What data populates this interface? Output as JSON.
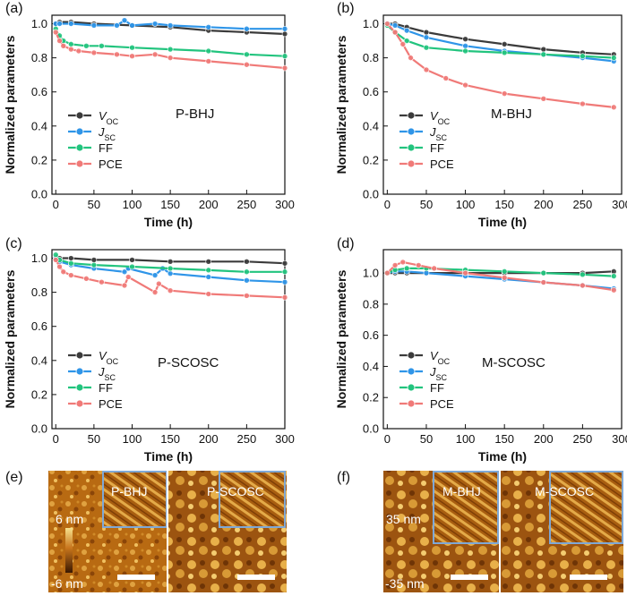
{
  "colors": {
    "voc": "#3b3b3b",
    "jsc": "#2f95e8",
    "ff": "#22c47e",
    "pce": "#f07a78"
  },
  "panel_e": {
    "label": "(e)",
    "left_title": "P-BHJ",
    "right_title": "P-SCOSC",
    "scale_max": "6 nm",
    "scale_min": "-6 nm"
  },
  "panel_f": {
    "label": "(f)",
    "left_title": "M-BHJ",
    "right_title": "M-SCOSC",
    "scale_max": "35 nm",
    "scale_min": "-35 nm"
  },
  "chart_data": [
    {
      "type": "line",
      "panel": "(a)",
      "annotation": "P-BHJ",
      "xlabel": "Time (h)",
      "ylabel": "Normalized parameters",
      "xlim": [
        -5,
        300
      ],
      "ylim": [
        0,
        1.05
      ],
      "xticks": [
        0,
        50,
        100,
        150,
        200,
        250,
        300
      ],
      "yticks": [
        0.0,
        0.2,
        0.4,
        0.6,
        0.8,
        1.0
      ],
      "legend_position": "center-left",
      "series": [
        {
          "name": "V_OC",
          "key": "voc",
          "x": [
            0,
            5,
            20,
            50,
            100,
            150,
            200,
            250,
            300
          ],
          "y": [
            1.0,
            1.01,
            1.01,
            1.0,
            0.99,
            0.98,
            0.96,
            0.95,
            0.94
          ]
        },
        {
          "name": "J_SC",
          "key": "jsc",
          "x": [
            0,
            5,
            20,
            50,
            80,
            90,
            100,
            130,
            150,
            200,
            250,
            300
          ],
          "y": [
            1.0,
            1.0,
            1.0,
            0.99,
            0.99,
            1.02,
            0.99,
            1.0,
            0.99,
            0.98,
            0.97,
            0.97
          ]
        },
        {
          "name": "FF",
          "key": "ff",
          "x": [
            0,
            5,
            10,
            20,
            40,
            60,
            100,
            150,
            200,
            250,
            300
          ],
          "y": [
            0.97,
            0.93,
            0.9,
            0.88,
            0.87,
            0.87,
            0.86,
            0.85,
            0.84,
            0.82,
            0.81
          ]
        },
        {
          "name": "PCE",
          "key": "pce",
          "x": [
            0,
            5,
            10,
            20,
            30,
            50,
            80,
            100,
            130,
            150,
            200,
            250,
            300
          ],
          "y": [
            0.95,
            0.9,
            0.87,
            0.85,
            0.84,
            0.83,
            0.82,
            0.81,
            0.82,
            0.8,
            0.78,
            0.76,
            0.74
          ]
        }
      ]
    },
    {
      "type": "line",
      "panel": "(b)",
      "annotation": "M-BHJ",
      "xlabel": "Time (h)",
      "ylabel": "Normalized parameters",
      "xlim": [
        -5,
        300
      ],
      "ylim": [
        0,
        1.05
      ],
      "xticks": [
        0,
        50,
        100,
        150,
        200,
        250,
        300
      ],
      "yticks": [
        0.0,
        0.2,
        0.4,
        0.6,
        0.8,
        1.0
      ],
      "legend_position": "center-left",
      "series": [
        {
          "name": "V_OC",
          "key": "voc",
          "x": [
            0,
            10,
            25,
            50,
            100,
            150,
            200,
            250,
            290
          ],
          "y": [
            1.0,
            1.0,
            0.98,
            0.95,
            0.91,
            0.88,
            0.85,
            0.83,
            0.82
          ]
        },
        {
          "name": "J_SC",
          "key": "jsc",
          "x": [
            0,
            10,
            25,
            50,
            100,
            150,
            200,
            250,
            290
          ],
          "y": [
            1.0,
            0.99,
            0.96,
            0.92,
            0.87,
            0.84,
            0.82,
            0.8,
            0.78
          ]
        },
        {
          "name": "FF",
          "key": "ff",
          "x": [
            0,
            10,
            25,
            50,
            100,
            150,
            200,
            250,
            290
          ],
          "y": [
            0.99,
            0.95,
            0.9,
            0.86,
            0.84,
            0.83,
            0.82,
            0.81,
            0.8
          ]
        },
        {
          "name": "PCE",
          "key": "pce",
          "x": [
            0,
            10,
            20,
            30,
            50,
            75,
            100,
            150,
            200,
            250,
            290
          ],
          "y": [
            1.0,
            0.95,
            0.88,
            0.8,
            0.73,
            0.68,
            0.64,
            0.59,
            0.56,
            0.53,
            0.51
          ]
        }
      ]
    },
    {
      "type": "line",
      "panel": "(c)",
      "annotation": "P-SCOSC",
      "xlabel": "Time (h)",
      "ylabel": "Normalized parameters",
      "xlim": [
        -5,
        300
      ],
      "ylim": [
        0,
        1.05
      ],
      "xticks": [
        0,
        50,
        100,
        150,
        200,
        250,
        300
      ],
      "yticks": [
        0.0,
        0.2,
        0.4,
        0.6,
        0.8,
        1.0
      ],
      "legend_position": "center-left",
      "series": [
        {
          "name": "V_OC",
          "key": "voc",
          "x": [
            0,
            5,
            20,
            50,
            100,
            150,
            200,
            250,
            300
          ],
          "y": [
            1.0,
            1.0,
            1.0,
            0.99,
            0.99,
            0.98,
            0.98,
            0.98,
            0.97
          ]
        },
        {
          "name": "J_SC",
          "key": "jsc",
          "x": [
            0,
            5,
            20,
            50,
            90,
            95,
            130,
            140,
            150,
            200,
            250,
            300
          ],
          "y": [
            1.0,
            0.98,
            0.96,
            0.94,
            0.92,
            0.94,
            0.9,
            0.94,
            0.91,
            0.89,
            0.87,
            0.86
          ]
        },
        {
          "name": "FF",
          "key": "ff",
          "x": [
            0,
            5,
            20,
            50,
            100,
            150,
            200,
            250,
            300
          ],
          "y": [
            1.02,
            0.99,
            0.97,
            0.96,
            0.95,
            0.94,
            0.93,
            0.92,
            0.92
          ]
        },
        {
          "name": "PCE",
          "key": "pce",
          "x": [
            0,
            5,
            10,
            20,
            40,
            60,
            90,
            95,
            130,
            135,
            150,
            200,
            250,
            300
          ],
          "y": [
            0.99,
            0.95,
            0.92,
            0.9,
            0.88,
            0.86,
            0.84,
            0.89,
            0.8,
            0.85,
            0.81,
            0.79,
            0.78,
            0.77
          ]
        }
      ]
    },
    {
      "type": "line",
      "panel": "(d)",
      "annotation": "M-SCOSC",
      "xlabel": "Time (h)",
      "ylabel": "Normalized parameters",
      "xlim": [
        -5,
        300
      ],
      "ylim": [
        0,
        1.15
      ],
      "xticks": [
        0,
        50,
        100,
        150,
        200,
        250,
        300
      ],
      "yticks": [
        0.0,
        0.2,
        0.4,
        0.6,
        0.8,
        1.0
      ],
      "legend_position": "center-left",
      "series": [
        {
          "name": "V_OC",
          "key": "voc",
          "x": [
            0,
            10,
            25,
            50,
            100,
            150,
            200,
            250,
            290
          ],
          "y": [
            1.0,
            1.0,
            1.0,
            1.0,
            1.0,
            1.0,
            1.0,
            1.0,
            1.01
          ]
        },
        {
          "name": "J_SC",
          "key": "jsc",
          "x": [
            0,
            10,
            25,
            50,
            100,
            150,
            200,
            250,
            290
          ],
          "y": [
            1.0,
            1.01,
            1.01,
            1.0,
            0.98,
            0.96,
            0.94,
            0.92,
            0.9
          ]
        },
        {
          "name": "FF",
          "key": "ff",
          "x": [
            0,
            10,
            25,
            50,
            100,
            150,
            200,
            250,
            290
          ],
          "y": [
            1.0,
            1.02,
            1.03,
            1.03,
            1.02,
            1.01,
            1.0,
            0.99,
            0.98
          ]
        },
        {
          "name": "PCE",
          "key": "pce",
          "x": [
            0,
            10,
            20,
            40,
            60,
            100,
            150,
            200,
            250,
            290
          ],
          "y": [
            1.0,
            1.05,
            1.07,
            1.05,
            1.03,
            1.0,
            0.97,
            0.94,
            0.92,
            0.89
          ]
        }
      ]
    }
  ]
}
